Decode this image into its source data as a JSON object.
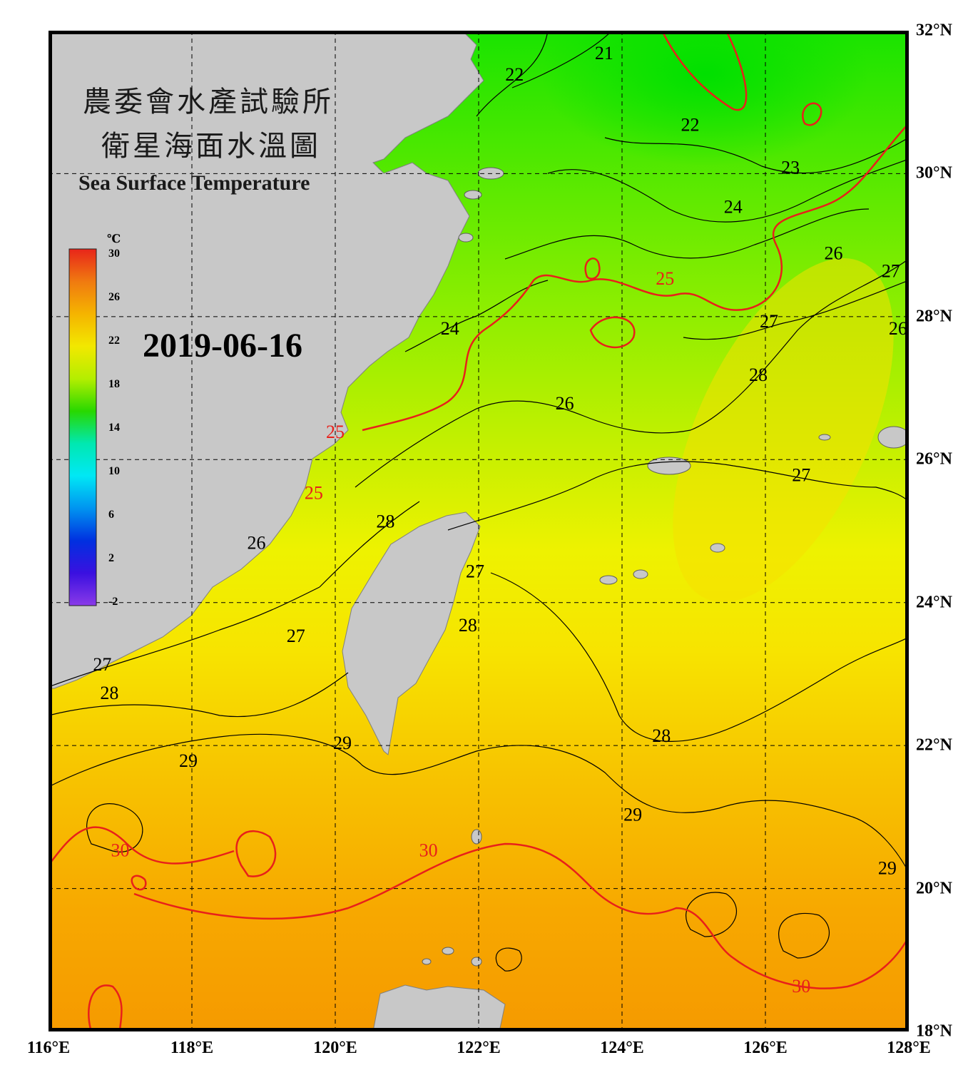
{
  "title": {
    "org_zh": "農委會水產試驗所",
    "product_zh": "衛星海面水溫圖",
    "product_en": "Sea Surface Temperature"
  },
  "date": "2019-06-16",
  "colorbar": {
    "unit": "℃",
    "ticks": [
      "30",
      "26",
      "22",
      "18",
      "14",
      "10",
      "6",
      "2",
      "-2"
    ],
    "colors": [
      "#e8251a",
      "#f07a10",
      "#f5b400",
      "#f2e800",
      "#b4ee00",
      "#28d800",
      "#00e8b0",
      "#00e8f5",
      "#0094f0",
      "#0030e0",
      "#3a10e0",
      "#8a3ae8"
    ]
  },
  "map": {
    "lon_labels": [
      "116°E",
      "118°E",
      "120°E",
      "122°E",
      "124°E",
      "126°E",
      "128°E"
    ],
    "lat_labels": [
      "32°N",
      "30°N",
      "28°N",
      "26°N",
      "24°N",
      "22°N",
      "20°N",
      "18°N"
    ],
    "lon_range": [
      116,
      128
    ],
    "lat_range": [
      18,
      32
    ],
    "grid_lons": [
      118,
      120,
      122,
      124,
      126
    ],
    "grid_lats": [
      20,
      22,
      24,
      26,
      28,
      30
    ],
    "contour_labels": [
      {
        "text": "21",
        "lon": 123.75,
        "lat": 31.6,
        "color": "black"
      },
      {
        "text": "22",
        "lon": 122.5,
        "lat": 31.3,
        "color": "black"
      },
      {
        "text": "22",
        "lon": 124.95,
        "lat": 30.6,
        "color": "black"
      },
      {
        "text": "23",
        "lon": 126.35,
        "lat": 30.0,
        "color": "black"
      },
      {
        "text": "24",
        "lon": 125.55,
        "lat": 29.45,
        "color": "black"
      },
      {
        "text": "26",
        "lon": 126.95,
        "lat": 28.8,
        "color": "black"
      },
      {
        "text": "25",
        "lon": 124.6,
        "lat": 28.45,
        "color": "red"
      },
      {
        "text": "27",
        "lon": 127.75,
        "lat": 28.55,
        "color": "black"
      },
      {
        "text": "27",
        "lon": 126.05,
        "lat": 27.85,
        "color": "black"
      },
      {
        "text": "26",
        "lon": 127.85,
        "lat": 27.75,
        "color": "black"
      },
      {
        "text": "24",
        "lon": 121.6,
        "lat": 27.75,
        "color": "black"
      },
      {
        "text": "28",
        "lon": 125.9,
        "lat": 27.1,
        "color": "black"
      },
      {
        "text": "26",
        "lon": 123.2,
        "lat": 26.7,
        "color": "black"
      },
      {
        "text": "25",
        "lon": 120.0,
        "lat": 26.3,
        "color": "red"
      },
      {
        "text": "27",
        "lon": 126.5,
        "lat": 25.7,
        "color": "black"
      },
      {
        "text": "25",
        "lon": 119.7,
        "lat": 25.45,
        "color": "red"
      },
      {
        "text": "28",
        "lon": 120.7,
        "lat": 25.05,
        "color": "black"
      },
      {
        "text": "26",
        "lon": 118.9,
        "lat": 24.75,
        "color": "black"
      },
      {
        "text": "27",
        "lon": 121.95,
        "lat": 24.35,
        "color": "black"
      },
      {
        "text": "28",
        "lon": 121.85,
        "lat": 23.6,
        "color": "black"
      },
      {
        "text": "27",
        "lon": 119.45,
        "lat": 23.45,
        "color": "black"
      },
      {
        "text": "27",
        "lon": 116.75,
        "lat": 23.05,
        "color": "black"
      },
      {
        "text": "28",
        "lon": 116.85,
        "lat": 22.65,
        "color": "black"
      },
      {
        "text": "28",
        "lon": 124.55,
        "lat": 22.05,
        "color": "black"
      },
      {
        "text": "29",
        "lon": 120.1,
        "lat": 21.95,
        "color": "black"
      },
      {
        "text": "29",
        "lon": 117.95,
        "lat": 21.7,
        "color": "black"
      },
      {
        "text": "29",
        "lon": 124.15,
        "lat": 20.95,
        "color": "black"
      },
      {
        "text": "30",
        "lon": 117.0,
        "lat": 20.45,
        "color": "red"
      },
      {
        "text": "30",
        "lon": 121.3,
        "lat": 20.45,
        "color": "red"
      },
      {
        "text": "29",
        "lon": 127.7,
        "lat": 20.2,
        "color": "black"
      },
      {
        "text": "30",
        "lon": 126.5,
        "lat": 18.55,
        "color": "red"
      }
    ]
  }
}
